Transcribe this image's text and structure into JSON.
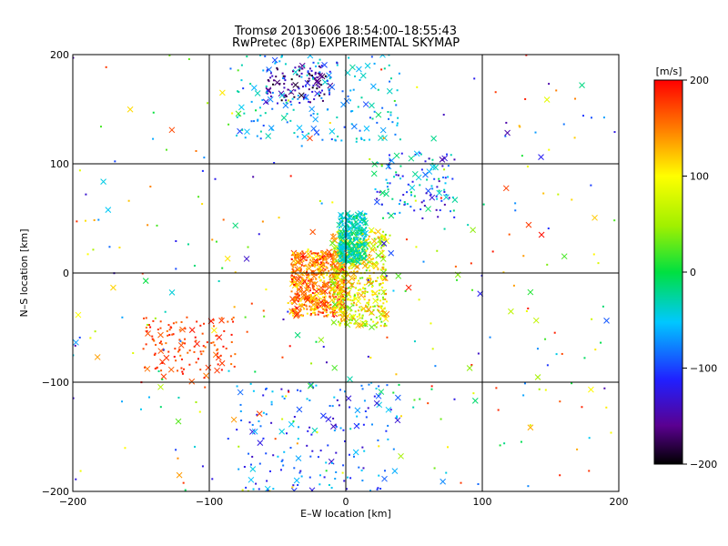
{
  "chart_data": {
    "type": "scatter",
    "title": "Tromsø 20130606 18:54:00–18:55:43",
    "subtitle": "RwPretec (8p) EXPERIMENTAL SKYMAP",
    "xlabel": "E–W location [km]",
    "ylabel": "N–S location [km]",
    "xlim": [
      -200,
      200
    ],
    "ylim": [
      -200,
      200
    ],
    "x_ticks": [
      "−200",
      "−100",
      "0",
      "100",
      "200"
    ],
    "y_ticks": [
      "−200",
      "−100",
      "0",
      "100",
      "200"
    ],
    "grid": true,
    "markers": [
      "dot",
      "x"
    ],
    "colorbar": {
      "label": "[m/s]",
      "range": [
        -200,
        200
      ],
      "ticks": [
        "200",
        "100",
        "0",
        "−100",
        "−200"
      ],
      "colormap": "rainbow (black–purple–blue–cyan–green–yellow–red)"
    },
    "clusters": [
      {
        "x": [
          -40,
          0
        ],
        "y": [
          -40,
          20
        ],
        "v_range": [
          100,
          200
        ],
        "count": 600
      },
      {
        "x": [
          -10,
          30
        ],
        "y": [
          -50,
          40
        ],
        "v_range": [
          20,
          150
        ],
        "count": 500
      },
      {
        "x": [
          -5,
          15
        ],
        "y": [
          10,
          55
        ],
        "v_range": [
          -60,
          0
        ],
        "count": 350
      },
      {
        "x": [
          -150,
          -80
        ],
        "y": [
          -95,
          -40
        ],
        "v_range": [
          150,
          200
        ],
        "count": 130
      },
      {
        "x": [
          -60,
          -10
        ],
        "y": [
          155,
          190
        ],
        "v_range": [
          -200,
          -120
        ],
        "count": 110
      },
      {
        "x": [
          -80,
          40
        ],
        "y": [
          120,
          200
        ],
        "v_range": [
          -100,
          -20
        ],
        "count": 180
      },
      {
        "x": [
          20,
          80
        ],
        "y": [
          50,
          110
        ],
        "v_range": [
          -150,
          0
        ],
        "count": 120
      },
      {
        "x": [
          -80,
          40
        ],
        "y": [
          -200,
          -100
        ],
        "v_range": [
          -140,
          -40
        ],
        "count": 160
      },
      {
        "x": [
          -200,
          200
        ],
        "y": [
          -200,
          200
        ],
        "v_range": [
          -150,
          200
        ],
        "count": 350
      }
    ]
  }
}
